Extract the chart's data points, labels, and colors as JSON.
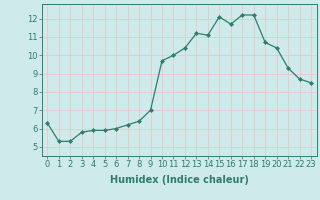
{
  "x": [
    0,
    1,
    2,
    3,
    4,
    5,
    6,
    7,
    8,
    9,
    10,
    11,
    12,
    13,
    14,
    15,
    16,
    17,
    18,
    19,
    20,
    21,
    22,
    23
  ],
  "y": [
    6.3,
    5.3,
    5.3,
    5.8,
    5.9,
    5.9,
    6.0,
    6.2,
    6.4,
    7.0,
    9.7,
    10.0,
    10.4,
    11.2,
    11.1,
    12.1,
    11.7,
    12.2,
    12.2,
    10.7,
    10.4,
    9.3,
    8.7,
    8.5
  ],
  "line_color": "#2e7d6e",
  "marker": "D",
  "marker_size": 2.0,
  "xlabel": "Humidex (Indice chaleur)",
  "xlim": [
    -0.5,
    23.5
  ],
  "ylim": [
    4.5,
    12.8
  ],
  "yticks": [
    5,
    6,
    7,
    8,
    9,
    10,
    11,
    12
  ],
  "xticks": [
    0,
    1,
    2,
    3,
    4,
    5,
    6,
    7,
    8,
    9,
    10,
    11,
    12,
    13,
    14,
    15,
    16,
    17,
    18,
    19,
    20,
    21,
    22,
    23
  ],
  "bg_color": "#ceeaea",
  "grid_color": "#e8c8c8",
  "tick_color": "#2e7d6e",
  "tick_label_fontsize": 6,
  "xlabel_fontsize": 7,
  "linewidth": 0.9
}
